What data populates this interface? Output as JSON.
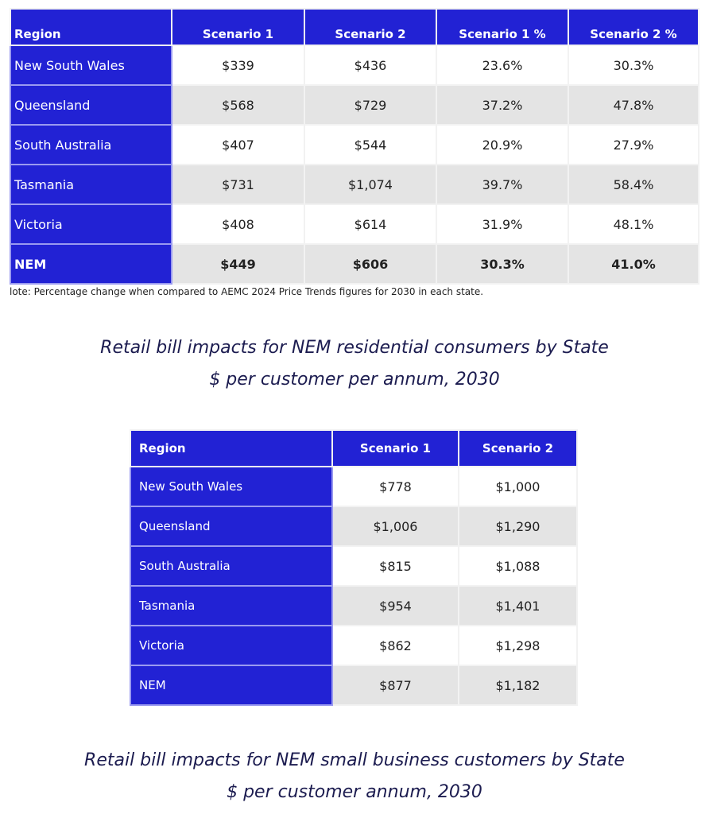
{
  "table1": {
    "headers": [
      "Region",
      "Scenario 1",
      "Scenario 2",
      "Scenario 1 %",
      "Scenario 2 %"
    ],
    "rows": [
      [
        "New South Wales",
        "$339",
        "$436",
        "23.6%",
        "30.3%"
      ],
      [
        "Queensland",
        "$568",
        "$729",
        "37.2%",
        "47.8%"
      ],
      [
        "South Australia",
        "$407",
        "$544",
        "20.9%",
        "27.9%"
      ],
      [
        "Tasmania",
        "$731",
        "$1,074",
        "39.7%",
        "58.4%"
      ],
      [
        "Victoria",
        "$408",
        "$614",
        "31.9%",
        "48.1%"
      ],
      [
        "NEM",
        "$449",
        "$606",
        "30.3%",
        "41.0%"
      ]
    ],
    "note": "lote: Percentage change when compared to AEMC 2024 Price Trends figures for 2030 in each state."
  },
  "caption1": {
    "line1": "Retail bill impacts for NEM residential consumers by State",
    "line2": "$ per customer per annum, 2030"
  },
  "table2": {
    "headers": [
      "Region",
      "Scenario 1",
      "Scenario 2"
    ],
    "rows": [
      [
        "New South Wales",
        "$778",
        "$1,000"
      ],
      [
        "Queensland",
        "$1,006",
        "$1,290"
      ],
      [
        "South Australia",
        "$815",
        "$1,088"
      ],
      [
        "Tasmania",
        "$954",
        "$1,401"
      ],
      [
        "Victoria",
        "$862",
        "$1,298"
      ],
      [
        "NEM",
        "$877",
        "$1,182"
      ]
    ]
  },
  "caption2": {
    "line1": "Retail bill impacts for NEM small business customers by State",
    "line2": "$ per customer annum, 2030"
  },
  "colors": {
    "header_blue": "#2222d4",
    "alt_row": "#e4e4e4",
    "caption": "#1c1c50"
  }
}
